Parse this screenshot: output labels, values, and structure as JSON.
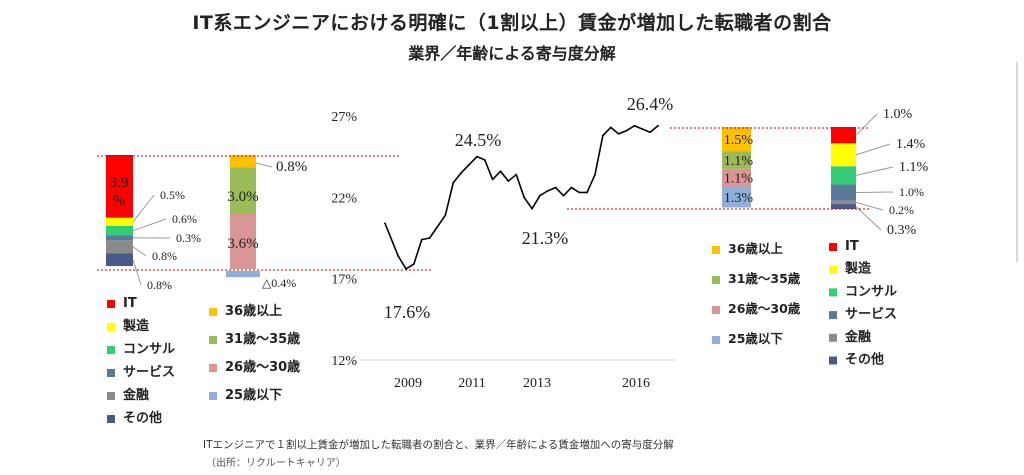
{
  "title": "IT系エンジニアにおける明確に（1割以上）賃金が増加した転職者の割合",
  "subtitle": "業界／年齢による寄与度分解",
  "caption": "ITエンジニアで１割以上賃金が増加した転職者の割合と、業界／年齢による賃金増加への寄与度分解",
  "source": "（出所：リクルートキャリア）",
  "colors": {
    "IT": "#ff0000",
    "製造": "#ffff00",
    "コンサル": "#33cc77",
    "サービス": "#5a7a99",
    "金融": "#8a8a8a",
    "その他": "#4a5a88",
    "36歳以上": "#ffc000",
    "31歳～35歳": "#9bbb59",
    "26歳～30歳": "#d99694",
    "25歳以下": "#8eaedb",
    "line": "#000000",
    "refline": "#cc0000"
  },
  "chart_data": [
    {
      "type": "bar",
      "title": "",
      "stack": "industry",
      "series": [
        {
          "name": "IT",
          "value": 3.9,
          "label": "3.9\n%"
        },
        {
          "name": "製造",
          "value": 0.5,
          "label": "0.5%"
        },
        {
          "name": "コンサル",
          "value": 0.6,
          "label": "0.6%"
        },
        {
          "name": "サービス",
          "value": 0.3,
          "label": "0.3%"
        },
        {
          "name": "金融",
          "value": 0.8,
          "label": "0.8%"
        },
        {
          "name": "その他",
          "value": 0.8,
          "label": "0.8%"
        }
      ]
    },
    {
      "type": "bar",
      "title": "",
      "stack": "age",
      "series": [
        {
          "name": "36歳以上",
          "value": 0.8,
          "label": "0.8%"
        },
        {
          "name": "31歳～35歳",
          "value": 3.0,
          "label": "3.0%"
        },
        {
          "name": "26歳～30歳",
          "value": 3.6,
          "label": "3.6%"
        },
        {
          "name": "25歳以下",
          "value": -0.4,
          "label": "△0.4%"
        }
      ]
    },
    {
      "type": "line",
      "title": "",
      "ylim": [
        12,
        27
      ],
      "yticks": [
        "27%",
        "22%",
        "17%",
        "12%"
      ],
      "xticks": [
        "2009",
        "2011",
        "2013",
        "2016"
      ],
      "x": [
        "2008-01",
        "2008-04",
        "2008-06",
        "2008-09",
        "2008-12",
        "2009-03",
        "2009-06",
        "2009-09",
        "2009-12",
        "2010-03",
        "2010-06",
        "2010-09",
        "2010-12",
        "2011-03",
        "2011-06",
        "2011-09",
        "2011-12",
        "2012-03",
        "2012-06",
        "2012-09",
        "2012-12",
        "2013-03",
        "2013-06",
        "2013-09",
        "2013-12",
        "2014-03",
        "2014-06",
        "2014-09",
        "2014-12",
        "2015-03",
        "2015-06",
        "2015-09",
        "2015-12",
        "2016-03",
        "2016-06",
        "2016-09"
      ],
      "values": [
        20.4,
        19.2,
        18.4,
        17.6,
        17.9,
        19.4,
        19.5,
        20.2,
        20.9,
        22.9,
        23.5,
        24.0,
        24.5,
        24.3,
        23.1,
        23.6,
        23.0,
        23.4,
        22.0,
        21.3,
        22.1,
        22.4,
        22.6,
        22.1,
        22.6,
        22.3,
        22.3,
        23.4,
        25.8,
        26.3,
        25.9,
        26.1,
        26.4,
        26.2,
        26.0,
        26.4
      ],
      "annotations": [
        {
          "label": "17.6%",
          "value": 17.6
        },
        {
          "label": "24.5%",
          "value": 24.5
        },
        {
          "label": "21.3%",
          "value": 21.3
        },
        {
          "label": "26.4%",
          "value": 26.4
        }
      ]
    },
    {
      "type": "bar",
      "title": "",
      "stack": "age",
      "series": [
        {
          "name": "36歳以上",
          "value": 1.5,
          "label": "1.5%"
        },
        {
          "name": "31歳～35歳",
          "value": 1.1,
          "label": "1.1%"
        },
        {
          "name": "26歳～30歳",
          "value": 1.1,
          "label": "1.1%"
        },
        {
          "name": "25歳以下",
          "value": 1.3,
          "label": "1.3%"
        }
      ]
    },
    {
      "type": "bar",
      "title": "",
      "stack": "industry",
      "series": [
        {
          "name": "IT",
          "value": 1.0,
          "label": "1.0%"
        },
        {
          "name": "製造",
          "value": 1.4,
          "label": "1.4%"
        },
        {
          "name": "コンサル",
          "value": 1.1,
          "label": "1.1%"
        },
        {
          "name": "サービス",
          "value": 1.0,
          "label": "1.0%"
        },
        {
          "name": "金融",
          "value": 0.2,
          "label": "0.2%"
        },
        {
          "name": "その他",
          "value": 0.3,
          "label": "0.3%"
        }
      ]
    }
  ],
  "legends": {
    "left_industry": [
      "IT",
      "製造",
      "コンサル",
      "サービス",
      "金融",
      "その他"
    ],
    "left_age": [
      "36歳以上",
      "31歳～35歳",
      "26歳～30歳",
      "25歳以下"
    ],
    "right_age": [
      "36歳以上",
      "31歳～35歳",
      "26歳～30歳",
      "25歳以下"
    ],
    "right_industry": [
      "IT",
      "製造",
      "コンサル",
      "サービス",
      "金融",
      "その他"
    ]
  }
}
